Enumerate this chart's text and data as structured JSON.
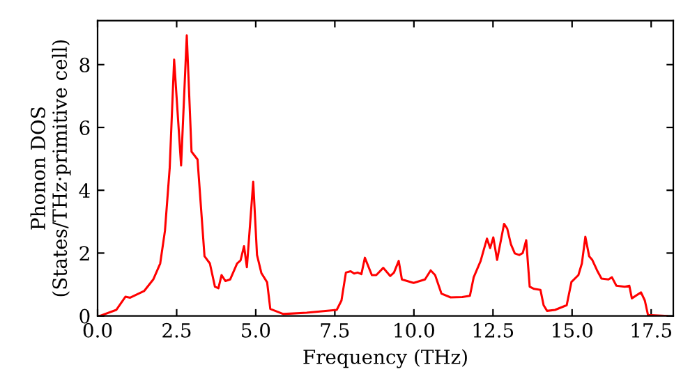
{
  "chart_data": {
    "type": "line",
    "xlabel": "Frequency (THz)",
    "ylabel": "Phonon DOS\n(States/THz·primitive cell)",
    "xlim": [
      0,
      18.2
    ],
    "ylim": [
      0,
      9.4
    ],
    "xticks": [
      {
        "value": 0,
        "label": "0.0"
      },
      {
        "value": 2.5,
        "label": "2.5"
      },
      {
        "value": 5,
        "label": "5.0"
      },
      {
        "value": 7.5,
        "label": "7.5"
      },
      {
        "value": 10,
        "label": "10.0"
      },
      {
        "value": 12.5,
        "label": "12.5"
      },
      {
        "value": 15,
        "label": "15.0"
      },
      {
        "value": 17.5,
        "label": "17.5"
      }
    ],
    "yticks": [
      0,
      2,
      4,
      6,
      8
    ],
    "grid": false,
    "marker": "none",
    "line_style": "solid",
    "series": [
      {
        "color": "#ff0000",
        "x": [
          0.07,
          0.59,
          0.88,
          1.03,
          1.47,
          1.76,
          1.98,
          2.13,
          2.28,
          2.42,
          2.64,
          2.82,
          2.97,
          3.16,
          3.38,
          3.55,
          3.71,
          3.82,
          3.92,
          4.04,
          4.19,
          4.41,
          4.52,
          4.63,
          4.72,
          4.92,
          5.04,
          5.18,
          5.36,
          5.46,
          5.87,
          6.61,
          7.56,
          7.71,
          7.85,
          8.0,
          8.11,
          8.22,
          8.34,
          8.45,
          8.67,
          8.81,
          9.03,
          9.25,
          9.37,
          9.52,
          9.62,
          9.99,
          10.35,
          10.53,
          10.67,
          10.87,
          11.16,
          11.53,
          11.77,
          11.89,
          12.11,
          12.19,
          12.31,
          12.41,
          12.51,
          12.63,
          12.85,
          12.95,
          13.07,
          13.19,
          13.33,
          13.44,
          13.55,
          13.66,
          13.8,
          14.0,
          14.1,
          14.21,
          14.46,
          14.83,
          14.98,
          15.2,
          15.31,
          15.42,
          15.54,
          15.64,
          15.79,
          15.93,
          16.15,
          16.26,
          16.4,
          16.67,
          16.81,
          16.89,
          17.18,
          17.3,
          17.4,
          18.0
        ],
        "values": [
          0,
          0.19,
          0.61,
          0.58,
          0.79,
          1.16,
          1.67,
          2.71,
          4.71,
          8.16,
          4.79,
          8.93,
          5.23,
          4.98,
          1.9,
          1.67,
          0.93,
          0.88,
          1.3,
          1.11,
          1.16,
          1.67,
          1.77,
          2.22,
          1.55,
          4.27,
          1.94,
          1.36,
          1.07,
          0.22,
          0.06,
          0.1,
          0.19,
          0.49,
          1.38,
          1.42,
          1.35,
          1.38,
          1.33,
          1.85,
          1.3,
          1.3,
          1.53,
          1.27,
          1.38,
          1.75,
          1.16,
          1.05,
          1.16,
          1.45,
          1.3,
          0.71,
          0.59,
          0.6,
          0.64,
          1.23,
          1.75,
          2.04,
          2.46,
          2.16,
          2.5,
          1.78,
          2.93,
          2.78,
          2.27,
          1.99,
          1.94,
          2.0,
          2.41,
          0.93,
          0.86,
          0.83,
          0.34,
          0.16,
          0.19,
          0.34,
          1.08,
          1.3,
          1.67,
          2.52,
          1.9,
          1.78,
          1.45,
          1.19,
          1.16,
          1.23,
          0.96,
          0.93,
          0.96,
          0.56,
          0.75,
          0.49,
          0.03,
          0
        ]
      }
    ]
  }
}
